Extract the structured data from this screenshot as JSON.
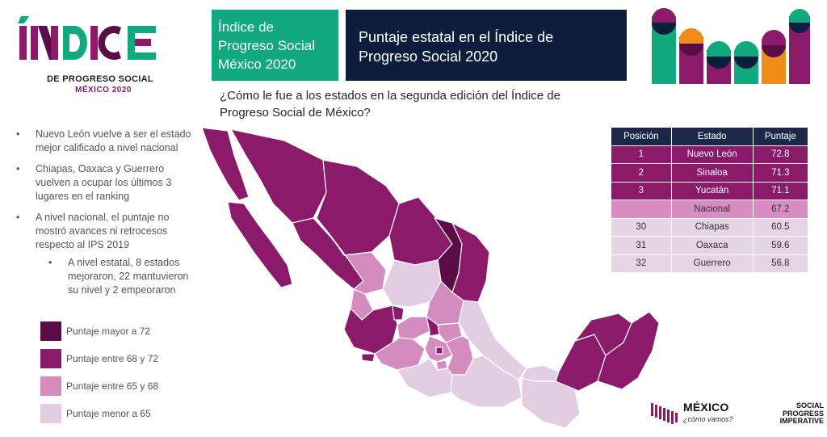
{
  "logo": {
    "word": "ÍNDICE",
    "subtitle": "DE PROGRESO SOCIAL",
    "year": "MÉXICO 2020"
  },
  "header": {
    "green_line1": "Índice de",
    "green_line2": "Progreso Social",
    "green_line3": "México 2020",
    "navy_line1": "Puntaje estatal en el Índice de",
    "navy_line2": "Progreso Social 2020"
  },
  "question": {
    "line1": "¿Cómo le fue a los estados en la segunda edición del Índice de",
    "line2": "Progreso Social de México?"
  },
  "bullets": {
    "b1": "Nuevo León vuelve a ser el estado mejor calificado a nivel nacional",
    "b2": "Chiapas, Oaxaca y Guerrero vuelven a ocupar los últimos 3 lugares en el ranking",
    "b3": "A nivel nacional, el puntaje no mostró avances ni retrocesos respecto al IPS 2019",
    "b4": "A nivel estatal, 8 estados mejoraron, 22 mantuvieron su nivel y 2 empeoraron"
  },
  "legend": {
    "items": [
      {
        "label": "Puntaje mayor a 72",
        "color": "#5a0c46"
      },
      {
        "label": "Puntaje entre 68 y 72",
        "color": "#8b1a6b"
      },
      {
        "label": "Puntaje entre 65 y 68",
        "color": "#d48bbd"
      },
      {
        "label": "Puntaje menor a 65",
        "color": "#e2cde2"
      }
    ]
  },
  "table": {
    "headers": [
      "Posición",
      "Estado",
      "Puntaje"
    ],
    "rows": [
      [
        "1",
        "Nuevo León",
        "72.8"
      ],
      [
        "2",
        "Sinaloa",
        "71.3"
      ],
      [
        "3",
        "Yucatán",
        "71.1"
      ],
      [
        "",
        "Nacional",
        "67.2"
      ],
      [
        "30",
        "Chiapas",
        "60.5"
      ],
      [
        "31",
        "Oaxaca",
        "59.6"
      ],
      [
        "32",
        "Guerrero",
        "56.8"
      ]
    ]
  },
  "footer": {
    "mexico_name": "MÉXICO",
    "mexico_tag": "¿cómo vamos?",
    "spi_line1": "SOCIAL",
    "spi_line2": "PROGRESS",
    "spi_line3": "IMPERATIVE"
  },
  "colors": {
    "green": "#13a97e",
    "navy": "#0d1e3c",
    "purple": "#8b1a6b",
    "dark_purple": "#5a0c46",
    "orange": "#ef8c1a"
  }
}
